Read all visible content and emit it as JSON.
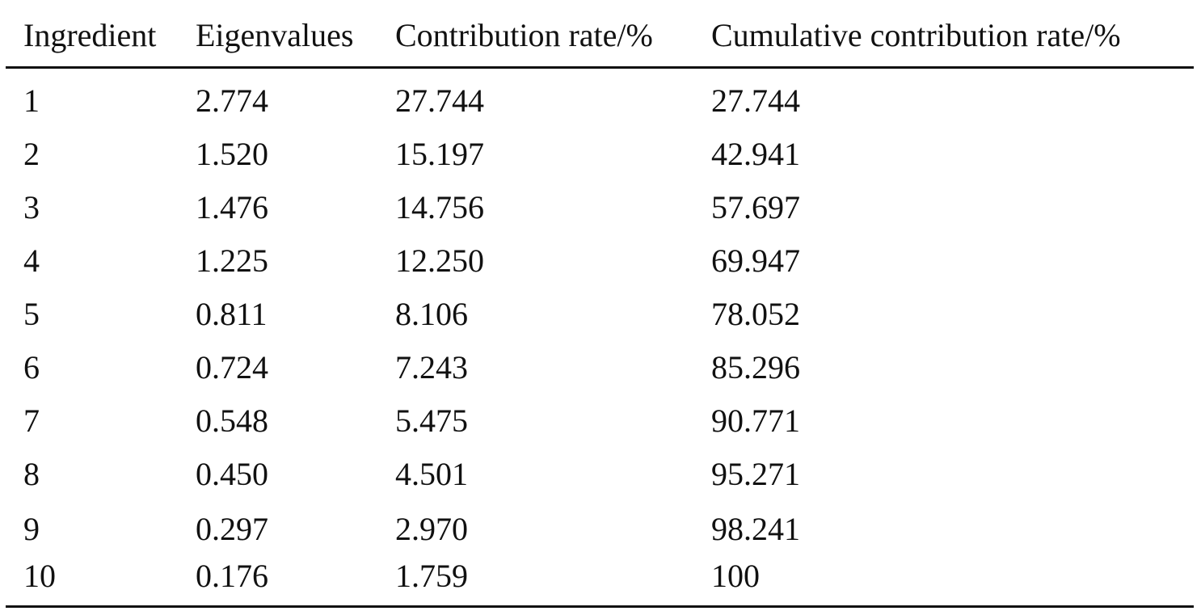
{
  "table": {
    "headers": [
      "Ingredient",
      "Eigenvalues",
      "Contribution rate/%",
      "Cumulative contribution rate/%"
    ],
    "rows": [
      [
        "1",
        "2.774",
        "27.744",
        "27.744"
      ],
      [
        "2",
        "1.520",
        "15.197",
        "42.941"
      ],
      [
        "3",
        "1.476",
        "14.756",
        "57.697"
      ],
      [
        "4",
        "1.225",
        "12.250",
        "69.947"
      ],
      [
        "5",
        "0.811",
        "8.106",
        "78.052"
      ],
      [
        "6",
        "0.724",
        "7.243",
        "85.296"
      ],
      [
        "7",
        "0.548",
        "5.475",
        "90.771"
      ],
      [
        "8",
        "0.450",
        "4.501",
        "95.271"
      ],
      [
        "9",
        "0.297",
        "2.970",
        "98.241"
      ],
      [
        "10",
        "0.176",
        "1.759",
        "100"
      ]
    ]
  }
}
